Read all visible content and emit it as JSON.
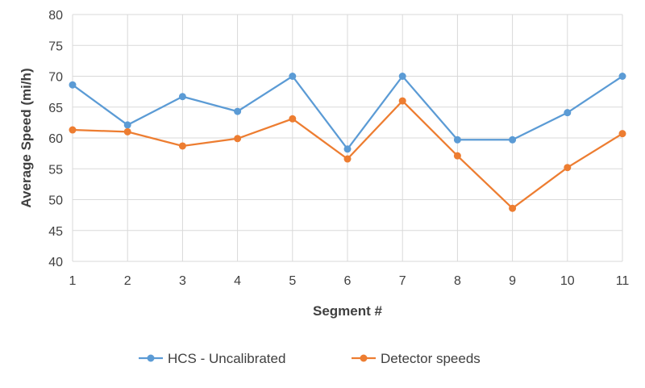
{
  "chart_data": {
    "type": "line",
    "title": "",
    "xlabel": "Segment #",
    "ylabel": "Average Speed (mi/h)",
    "x": [
      1,
      2,
      3,
      4,
      5,
      6,
      7,
      8,
      9,
      10,
      11
    ],
    "ylim": [
      40,
      80
    ],
    "yticks": [
      40,
      45,
      50,
      55,
      60,
      65,
      70,
      75,
      80
    ],
    "grid": true,
    "legend": "bottom",
    "series": [
      {
        "name": "HCS - Uncalibrated",
        "color": "#5B9BD5",
        "values": [
          68.6,
          62.1,
          66.7,
          64.3,
          70.0,
          58.2,
          70.0,
          59.7,
          59.7,
          64.1,
          70.0
        ]
      },
      {
        "name": "Detector speeds",
        "color": "#ED7D31",
        "values": [
          61.3,
          61.0,
          58.7,
          59.9,
          63.1,
          56.6,
          66.0,
          57.1,
          48.6,
          55.2,
          60.7
        ]
      }
    ]
  }
}
